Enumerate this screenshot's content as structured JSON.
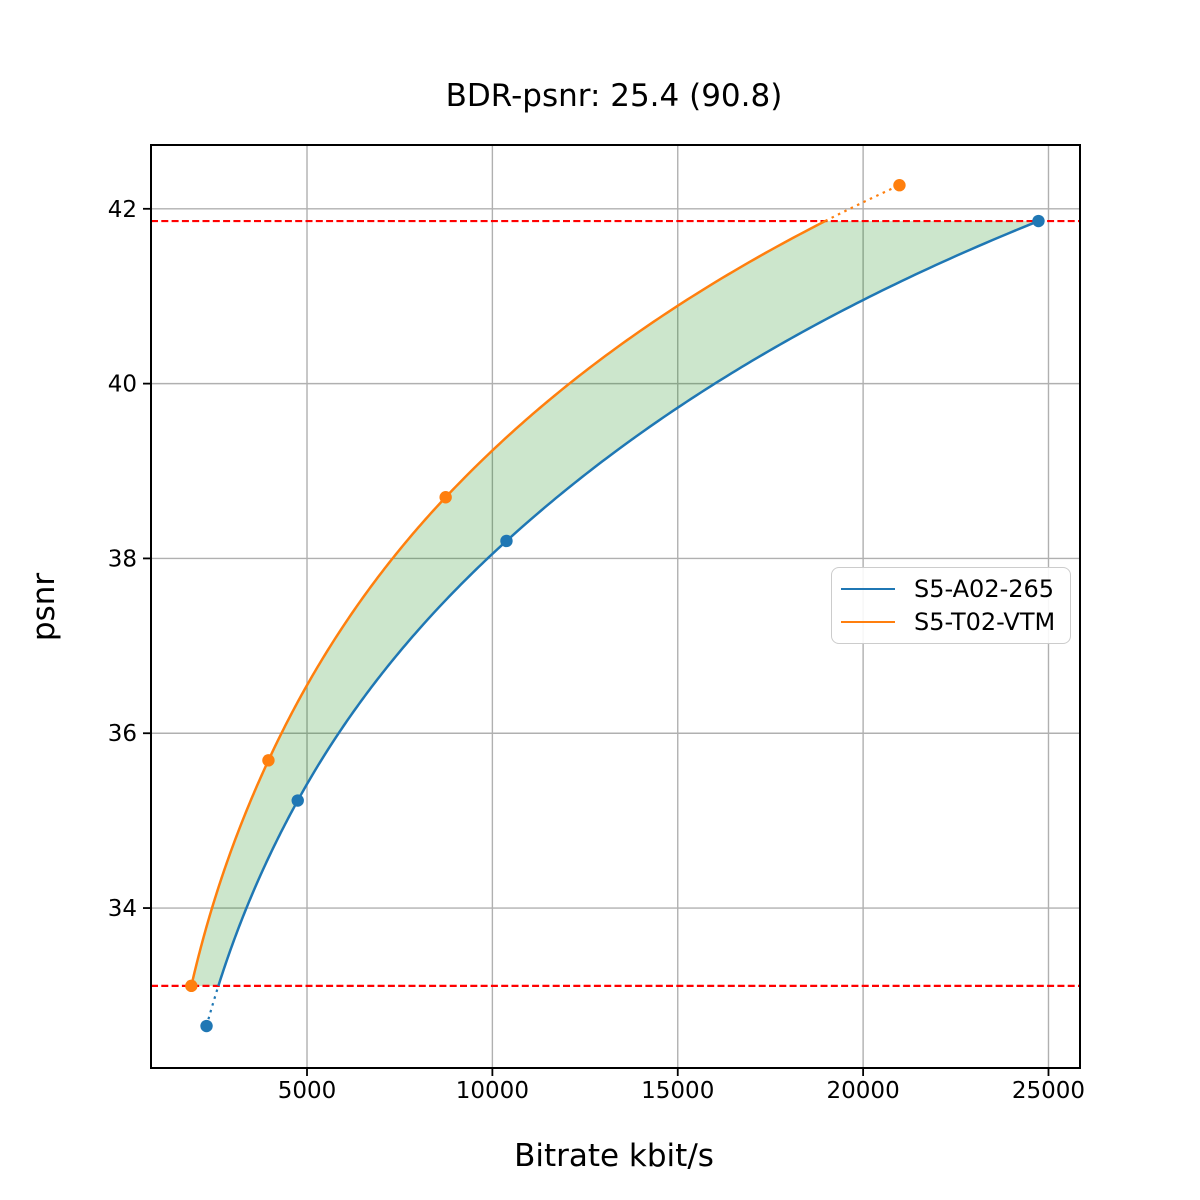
{
  "title": "BDR-psnr: 25.4 (90.8)",
  "chart_data": {
    "type": "line",
    "title": "BDR-psnr: 25.4 (90.8)",
    "xlabel": "Bitrate kbit/s",
    "ylabel": "psnr",
    "xlim": [
      792,
      25850
    ],
    "ylim": [
      32.17,
      42.73
    ],
    "xticks": [
      5000,
      10000,
      15000,
      20000,
      25000
    ],
    "xtick_labels": [
      "5000",
      "10000",
      "15000",
      "20000",
      "25000"
    ],
    "yticks": [
      34,
      36,
      38,
      40,
      42
    ],
    "ytick_labels": [
      "34",
      "36",
      "38",
      "40",
      "42"
    ],
    "grid": true,
    "grid_color": "#b0b0b0",
    "legend_position": "center right",
    "interpolation": "monotone-cubic-in-log-bitrate",
    "series": [
      {
        "name": "S5-A02-265",
        "color": "#1f77b4",
        "points": [
          [
            2290,
            32.65
          ],
          [
            4750,
            35.23
          ],
          [
            10380,
            38.2
          ],
          [
            24730,
            41.86
          ]
        ]
      },
      {
        "name": "S5-T02-VTM",
        "color": "#ff7f0e",
        "points": [
          [
            1880,
            33.11
          ],
          [
            3960,
            35.69
          ],
          [
            8740,
            38.7
          ],
          [
            20980,
            42.27
          ]
        ]
      }
    ],
    "overlap_lines": {
      "color": "#ff0000",
      "style": "dashed",
      "values": [
        33.11,
        41.86
      ]
    },
    "fill_between": {
      "color": "rgba(0,128,0,0.2)",
      "psnr_range": [
        33.11,
        41.86
      ]
    }
  }
}
